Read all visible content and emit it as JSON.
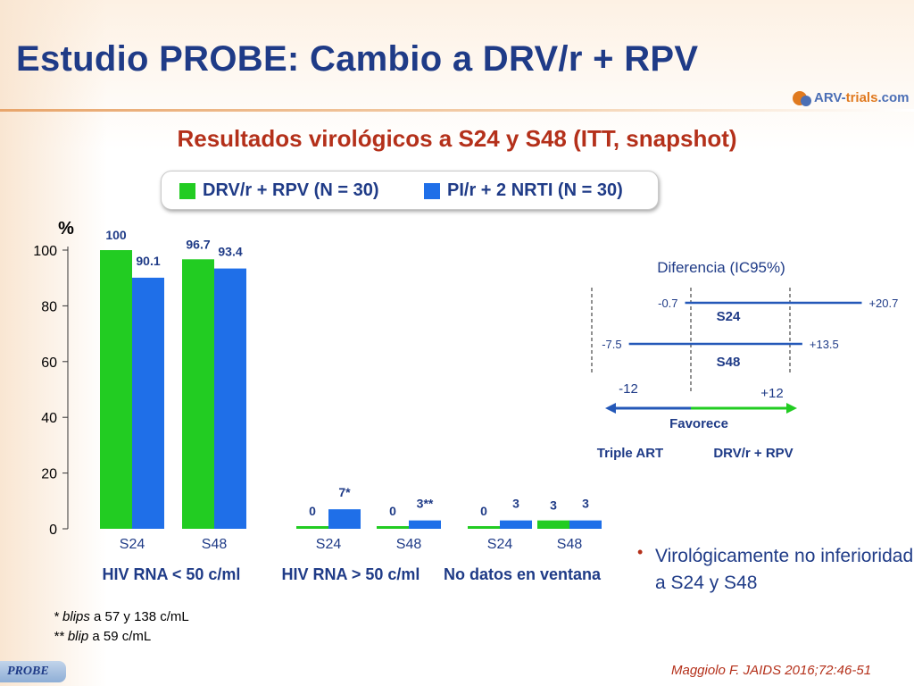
{
  "slide": {
    "title": "Estudio PROBE: Cambio a DRV/r + RPV",
    "subtitle": "Resultados virológicos a S24 y S48 (ITT, snapshot)",
    "logo": "ARV-trials.com",
    "logo_main": "ARV-",
    "logo_accent": "trials",
    "logo_suffix": ".com",
    "tab_label": "PROBE",
    "citation": "Maggiolo F. JAIDS 2016;72:46-51",
    "footnote_1_mark": "* ",
    "footnote_1_italic": "blips",
    "footnote_1_rest": " a 57 y 138 c/mL",
    "footnote_2_mark": "** ",
    "footnote_2_italic": "blip",
    "footnote_2_rest": " a 59 c/mL",
    "bullet": "Virológicamente no inferioridad a S24 y S48",
    "colors": {
      "title": "#1f3b87",
      "subtitle": "#b4301a",
      "green": "#22cc22",
      "blue": "#1f6fe8"
    }
  },
  "legend": [
    {
      "label": "DRV/r + RPV (N = 30)",
      "color": "#22cc22"
    },
    {
      "label": "PI/r + 2 NRTI (N = 30)",
      "color": "#1f6fe8"
    }
  ],
  "chart_data": [
    {
      "type": "bar",
      "ylabel": "%",
      "ylim": [
        0,
        100
      ],
      "yticks": [
        0,
        20,
        40,
        60,
        80,
        100
      ],
      "series": [
        {
          "name": "DRV/r + RPV (N = 30)",
          "color": "#22cc22"
        },
        {
          "name": "PI/r + 2 NRTI (N = 30)",
          "color": "#1f6fe8"
        }
      ],
      "groups": [
        {
          "label": "HIV RNA < 50 c/ml",
          "timepoints": [
            {
              "label": "S24",
              "values": [
                100,
                90.1
              ],
              "labels": [
                "100",
                "90.1"
              ]
            },
            {
              "label": "S48",
              "values": [
                96.7,
                93.4
              ],
              "labels": [
                "96.7",
                "93.4"
              ]
            }
          ]
        },
        {
          "label": "HIV RNA > 50 c/ml",
          "timepoints": [
            {
              "label": "S24",
              "values": [
                0,
                7
              ],
              "labels": [
                "0",
                "7*"
              ]
            },
            {
              "label": "S48",
              "values": [
                0,
                3
              ],
              "labels": [
                "0",
                "3**"
              ]
            }
          ]
        },
        {
          "label": "No datos en ventana",
          "timepoints": [
            {
              "label": "S24",
              "values": [
                0,
                3
              ],
              "labels": [
                "0",
                "3"
              ]
            },
            {
              "label": "S48",
              "values": [
                3,
                3
              ],
              "labels": [
                "3",
                "3"
              ]
            }
          ]
        }
      ]
    },
    {
      "type": "forest",
      "title": "Diferencia (IC95%)",
      "intervals": [
        {
          "label": "S24",
          "low": -0.7,
          "high": 20.7,
          "low_label": "-0.7",
          "high_label": "+20.7"
        },
        {
          "label": "S48",
          "low": -7.5,
          "high": 13.5,
          "low_label": "-7.5",
          "high_label": "+13.5"
        }
      ],
      "margin_low": -12,
      "margin_high": 12,
      "margin_low_label": "-12",
      "margin_high_label": "+12",
      "favors_label": "Favorece",
      "favors_left": "Triple ART",
      "favors_right": "DRV/r + RPV"
    }
  ]
}
